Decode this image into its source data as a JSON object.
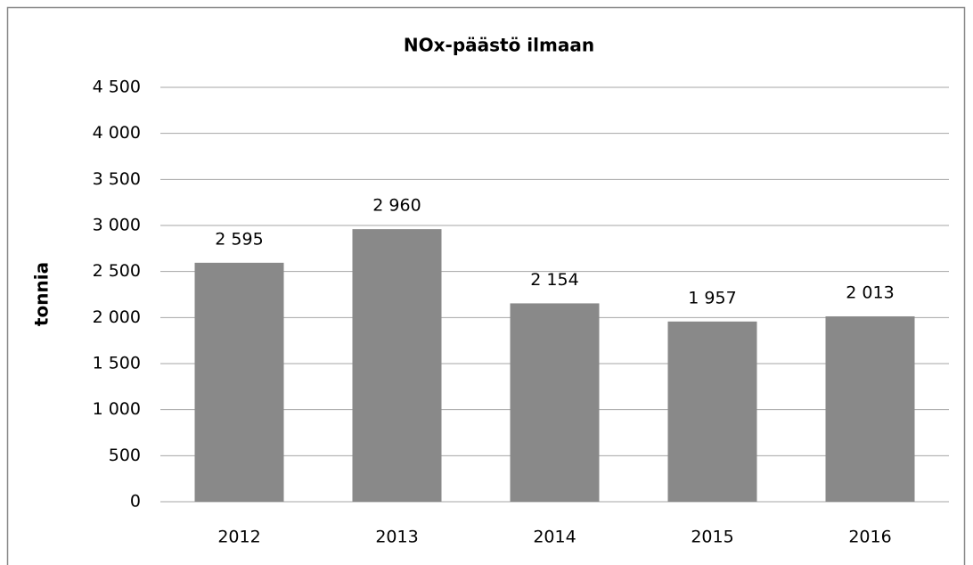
{
  "chart_data": {
    "type": "bar",
    "title": "NOx-päästö ilmaan",
    "y_label": "tonnia",
    "categories": [
      "2012",
      "2013",
      "2014",
      "2015",
      "2016"
    ],
    "values": [
      2595,
      2960,
      2154,
      1957,
      2013
    ],
    "value_labels": [
      "2 595",
      "2 960",
      "2 154",
      "1 957",
      "2 013"
    ],
    "color": "#898989",
    "ylim": [
      0,
      4500
    ],
    "yticks": [
      0,
      500,
      {
        "value": 1000,
        "label": "1 000"
      },
      {
        "value": 1500,
        "label": "1 500"
      },
      {
        "value": 2000,
        "label": "2 000"
      },
      {
        "value": 2500,
        "label": "2 500"
      },
      {
        "value": 3000,
        "label": "3 000"
      },
      {
        "value": 3500,
        "label": "3 500"
      },
      {
        "value": 4000,
        "label": "4 000"
      },
      {
        "value": 4500,
        "label": "4 500"
      }
    ],
    "grid": true
  }
}
